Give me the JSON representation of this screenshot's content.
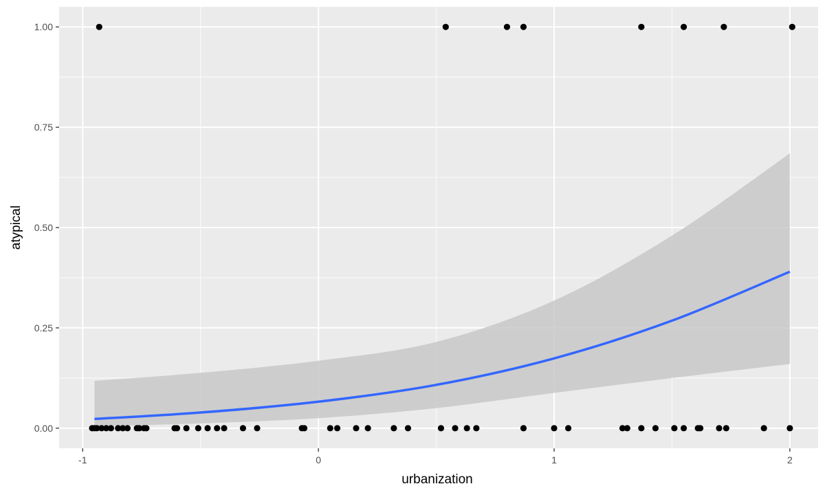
{
  "chart_data": {
    "type": "scatter",
    "title": "",
    "xlabel": "urbanization",
    "ylabel": "atypical",
    "xlim": [
      -1.1,
      2.12
    ],
    "ylim": [
      -0.05,
      1.05
    ],
    "x_ticks": [
      -1,
      0,
      1,
      2
    ],
    "x_tick_labels": [
      "-1",
      "0",
      "1",
      "2"
    ],
    "y_ticks": [
      0,
      0.25,
      0.5,
      0.75,
      1.0
    ],
    "y_tick_labels": [
      "0.00",
      "0.25",
      "0.50",
      "0.75",
      "1.00"
    ],
    "grid": true,
    "legend": "none",
    "colors": {
      "panel": "#ebebeb",
      "grid_major": "#ffffff",
      "points": "#000000",
      "fit_line": "#3366ff",
      "ribbon": "#c8c8c8"
    },
    "series": [
      {
        "type": "scatter",
        "points": [
          [
            -0.93,
            1
          ],
          [
            0.54,
            1
          ],
          [
            0.8,
            1
          ],
          [
            0.87,
            1
          ],
          [
            1.37,
            1
          ],
          [
            1.55,
            1
          ],
          [
            1.72,
            1
          ],
          [
            2.01,
            1
          ],
          [
            -0.96,
            0
          ],
          [
            -0.95,
            0
          ],
          [
            -0.94,
            0
          ],
          [
            -0.92,
            0
          ],
          [
            -0.9,
            0
          ],
          [
            -0.88,
            0
          ],
          [
            -0.85,
            0
          ],
          [
            -0.83,
            0
          ],
          [
            -0.81,
            0
          ],
          [
            -0.77,
            0
          ],
          [
            -0.76,
            0
          ],
          [
            -0.74,
            0
          ],
          [
            -0.73,
            0
          ],
          [
            -0.61,
            0
          ],
          [
            -0.6,
            0
          ],
          [
            -0.56,
            0
          ],
          [
            -0.51,
            0
          ],
          [
            -0.47,
            0
          ],
          [
            -0.43,
            0
          ],
          [
            -0.4,
            0
          ],
          [
            -0.32,
            0
          ],
          [
            -0.26,
            0
          ],
          [
            -0.07,
            0
          ],
          [
            -0.06,
            0
          ],
          [
            0.05,
            0
          ],
          [
            0.08,
            0
          ],
          [
            0.16,
            0
          ],
          [
            0.21,
            0
          ],
          [
            0.32,
            0
          ],
          [
            0.38,
            0
          ],
          [
            0.52,
            0
          ],
          [
            0.58,
            0
          ],
          [
            0.63,
            0
          ],
          [
            0.67,
            0
          ],
          [
            0.87,
            0
          ],
          [
            1.0,
            0
          ],
          [
            1.06,
            0
          ],
          [
            1.29,
            0
          ],
          [
            1.31,
            0
          ],
          [
            1.37,
            0
          ],
          [
            1.43,
            0
          ],
          [
            1.51,
            0
          ],
          [
            1.55,
            0
          ],
          [
            1.61,
            0
          ],
          [
            1.62,
            0
          ],
          [
            1.7,
            0
          ],
          [
            1.73,
            0
          ],
          [
            1.89,
            0
          ],
          [
            2.0,
            0
          ]
        ]
      },
      {
        "type": "line",
        "name": "",
        "x": [
          -0.95,
          -0.5,
          0,
          0.5,
          1.0,
          1.5,
          2.0
        ],
        "y": [
          0.023,
          0.039,
          0.066,
          0.108,
          0.174,
          0.268,
          0.39
        ]
      },
      {
        "type": "area",
        "name": "",
        "x": [
          -0.95,
          -0.5,
          0,
          0.5,
          1.0,
          1.5,
          2.0
        ],
        "lower": [
          0.005,
          0.012,
          0.025,
          0.05,
          0.088,
          0.125,
          0.16
        ],
        "upper": [
          0.118,
          0.138,
          0.168,
          0.215,
          0.318,
          0.48,
          0.685
        ]
      }
    ]
  }
}
